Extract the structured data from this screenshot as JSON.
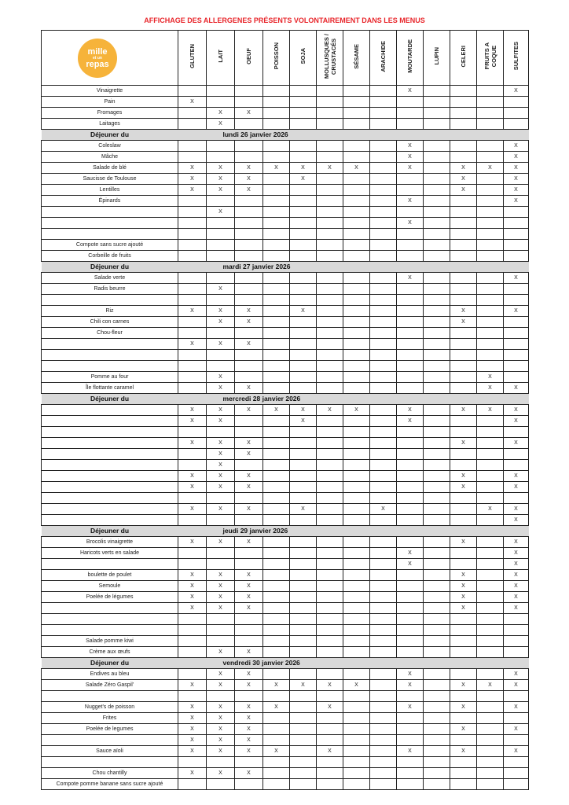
{
  "title": "AFFICHAGE DES ALLERGENES PRÉSENTS VOLONTAIREMENT DANS LES MENUS",
  "logo": {
    "text": "mille et un repas",
    "color": "#f6b33a"
  },
  "columns": [
    "GLUTEN",
    "LAIT",
    "OEUF",
    "POISSON",
    "SOJA",
    "MOLLUSQUES /\nCRUSTACÉS",
    "SÉSAME",
    "ARACHIDE",
    "MOUTARDE",
    "LUPIN",
    "CELERI",
    "FRUITS A\nCOQUE",
    "SULFITES"
  ],
  "accent_color": "#e8262b",
  "sections": [
    {
      "heading": "",
      "date": "",
      "rows": [
        {
          "label": "Vinaigrette",
          "cells": [
            "",
            "",
            "",
            "",
            "",
            "",
            "",
            "",
            "X",
            "",
            "",
            "",
            "X"
          ]
        },
        {
          "label": "Pain",
          "cells": [
            "X",
            "",
            "",
            "",
            "",
            "",
            "",
            "",
            "",
            "",
            "",
            "",
            ""
          ]
        },
        {
          "label": "Fromages",
          "cells": [
            "",
            "X",
            "X",
            "",
            "",
            "",
            "",
            "",
            "",
            "",
            "",
            "",
            ""
          ]
        },
        {
          "label": "Laitages",
          "cells": [
            "",
            "X",
            "",
            "",
            "",
            "",
            "",
            "",
            "",
            "",
            "",
            "",
            ""
          ]
        }
      ]
    },
    {
      "heading": "Déjeuner du",
      "date": "lundi 26 janvier 2026",
      "rows": [
        {
          "label": "Coleslaw",
          "cells": [
            "",
            "",
            "",
            "",
            "",
            "",
            "",
            "",
            "X",
            "",
            "",
            "",
            "X"
          ]
        },
        {
          "label": "Mâche",
          "cells": [
            "",
            "",
            "",
            "",
            "",
            "",
            "",
            "",
            "X",
            "",
            "",
            "",
            "X"
          ]
        },
        {
          "label": "Salade de blé",
          "cells": [
            "X",
            "X",
            "X",
            "X",
            "X",
            "X",
            "X",
            "",
            "X",
            "",
            "X",
            "X",
            "X"
          ]
        },
        {
          "label": "Saucisse de Toulouse",
          "cells": [
            "X",
            "X",
            "X",
            "",
            "X",
            "",
            "",
            "",
            "",
            "",
            "X",
            "",
            "X"
          ]
        },
        {
          "label": "Lentilles",
          "cells": [
            "X",
            "X",
            "X",
            "",
            "",
            "",
            "",
            "",
            "",
            "",
            "X",
            "",
            "X"
          ]
        },
        {
          "label": "Épinards",
          "cells": [
            "",
            "",
            "",
            "",
            "",
            "",
            "",
            "",
            "X",
            "",
            "",
            "",
            "X"
          ]
        },
        {
          "label": "",
          "cells": [
            "",
            "X",
            "",
            "",
            "",
            "",
            "",
            "",
            "",
            "",
            "",
            "",
            ""
          ]
        },
        {
          "label": "",
          "cells": [
            "",
            "",
            "",
            "",
            "",
            "",
            "",
            "",
            "X",
            "",
            "",
            "",
            ""
          ]
        },
        {
          "label": "",
          "cells": [
            "",
            "",
            "",
            "",
            "",
            "",
            "",
            "",
            "",
            "",
            "",
            "",
            ""
          ]
        },
        {
          "label": "Compote sans sucre ajouté",
          "cells": [
            "",
            "",
            "",
            "",
            "",
            "",
            "",
            "",
            "",
            "",
            "",
            "",
            ""
          ]
        },
        {
          "label": "Corbeille de fruits",
          "cells": [
            "",
            "",
            "",
            "",
            "",
            "",
            "",
            "",
            "",
            "",
            "",
            "",
            ""
          ]
        }
      ]
    },
    {
      "heading": "Déjeuner du",
      "date": "mardi 27 janvier 2026",
      "rows": [
        {
          "label": "Salade verte",
          "cells": [
            "",
            "",
            "",
            "",
            "",
            "",
            "",
            "",
            "X",
            "",
            "",
            "",
            "X"
          ]
        },
        {
          "label": "Radis beurre",
          "cells": [
            "",
            "X",
            "",
            "",
            "",
            "",
            "",
            "",
            "",
            "",
            "",
            "",
            ""
          ]
        },
        {
          "label": "",
          "cells": [
            "",
            "",
            "",
            "",
            "",
            "",
            "",
            "",
            "",
            "",
            "",
            "",
            ""
          ]
        },
        {
          "label": "Riz",
          "cells": [
            "X",
            "X",
            "X",
            "",
            "X",
            "",
            "",
            "",
            "",
            "",
            "X",
            "",
            "X"
          ]
        },
        {
          "label": "Chili con carnes",
          "cells": [
            "",
            "X",
            "X",
            "",
            "",
            "",
            "",
            "",
            "",
            "",
            "X",
            "",
            ""
          ]
        },
        {
          "label": "Chou-fleur",
          "cells": [
            "",
            "",
            "",
            "",
            "",
            "",
            "",
            "",
            "",
            "",
            "",
            "",
            ""
          ]
        },
        {
          "label": "",
          "cells": [
            "X",
            "X",
            "X",
            "",
            "",
            "",
            "",
            "",
            "",
            "",
            "",
            "",
            ""
          ]
        },
        {
          "label": "",
          "cells": [
            "",
            "",
            "",
            "",
            "",
            "",
            "",
            "",
            "",
            "",
            "",
            "",
            ""
          ]
        },
        {
          "label": "",
          "cells": [
            "",
            "",
            "",
            "",
            "",
            "",
            "",
            "",
            "",
            "",
            "",
            "",
            ""
          ]
        },
        {
          "label": "Pomme au four",
          "cells": [
            "",
            "X",
            "",
            "",
            "",
            "",
            "",
            "",
            "",
            "",
            "",
            "X",
            ""
          ]
        },
        {
          "label": "Île flottante caramel",
          "cells": [
            "",
            "X",
            "X",
            "",
            "",
            "",
            "",
            "",
            "",
            "",
            "",
            "X",
            "X"
          ]
        }
      ]
    },
    {
      "heading": "Déjeuner du",
      "date": "mercredi 28 janvier 2026",
      "rows": [
        {
          "label": "",
          "cells": [
            "X",
            "X",
            "X",
            "X",
            "X",
            "X",
            "X",
            "",
            "X",
            "",
            "X",
            "X",
            "X"
          ]
        },
        {
          "label": "",
          "cells": [
            "X",
            "X",
            "",
            "",
            "X",
            "",
            "",
            "",
            "X",
            "",
            "",
            "",
            "X"
          ]
        },
        {
          "label": "",
          "cells": [
            "",
            "",
            "",
            "",
            "",
            "",
            "",
            "",
            "",
            "",
            "",
            "",
            ""
          ]
        },
        {
          "label": "",
          "cells": [
            "X",
            "X",
            "X",
            "",
            "",
            "",
            "",
            "",
            "",
            "",
            "X",
            "",
            "X"
          ]
        },
        {
          "label": "",
          "cells": [
            "",
            "X",
            "X",
            "",
            "",
            "",
            "",
            "",
            "",
            "",
            "",
            "",
            ""
          ]
        },
        {
          "label": "",
          "cells": [
            "",
            "X",
            "",
            "",
            "",
            "",
            "",
            "",
            "",
            "",
            "",
            "",
            ""
          ]
        },
        {
          "label": "",
          "cells": [
            "X",
            "X",
            "X",
            "",
            "",
            "",
            "",
            "",
            "",
            "",
            "X",
            "",
            "X"
          ]
        },
        {
          "label": "",
          "cells": [
            "X",
            "X",
            "X",
            "",
            "",
            "",
            "",
            "",
            "",
            "",
            "X",
            "",
            "X"
          ]
        },
        {
          "label": "",
          "cells": [
            "",
            "",
            "",
            "",
            "",
            "",
            "",
            "",
            "",
            "",
            "",
            "",
            ""
          ]
        },
        {
          "label": "",
          "cells": [
            "X",
            "X",
            "X",
            "",
            "X",
            "",
            "",
            "X",
            "",
            "",
            "",
            "X",
            "X"
          ]
        },
        {
          "label": "",
          "cells": [
            "",
            "",
            "",
            "",
            "",
            "",
            "",
            "",
            "",
            "",
            "",
            "",
            "X"
          ]
        }
      ]
    },
    {
      "heading": "Déjeuner du",
      "date": "jeudi 29 janvier 2026",
      "rows": [
        {
          "label": "Brocolis vinaigrette",
          "cells": [
            "X",
            "X",
            "X",
            "",
            "",
            "",
            "",
            "",
            "",
            "",
            "X",
            "",
            "X"
          ]
        },
        {
          "label": "Haricots verts en salade",
          "cells": [
            "",
            "",
            "",
            "",
            "",
            "",
            "",
            "",
            "X",
            "",
            "",
            "",
            "X"
          ]
        },
        {
          "label": "",
          "cells": [
            "",
            "",
            "",
            "",
            "",
            "",
            "",
            "",
            "X",
            "",
            "",
            "",
            "X"
          ]
        },
        {
          "label": "boulette de poulet",
          "cells": [
            "X",
            "X",
            "X",
            "",
            "",
            "",
            "",
            "",
            "",
            "",
            "X",
            "",
            "X"
          ]
        },
        {
          "label": "Semoule",
          "cells": [
            "X",
            "X",
            "X",
            "",
            "",
            "",
            "",
            "",
            "",
            "",
            "X",
            "",
            "X"
          ]
        },
        {
          "label": "Poelée de légumes",
          "cells": [
            "X",
            "X",
            "X",
            "",
            "",
            "",
            "",
            "",
            "",
            "",
            "X",
            "",
            "X"
          ]
        },
        {
          "label": "",
          "cells": [
            "X",
            "X",
            "X",
            "",
            "",
            "",
            "",
            "",
            "",
            "",
            "X",
            "",
            "X"
          ]
        },
        {
          "label": "",
          "cells": [
            "",
            "",
            "",
            "",
            "",
            "",
            "",
            "",
            "",
            "",
            "",
            "",
            ""
          ]
        },
        {
          "label": "",
          "cells": [
            "",
            "",
            "",
            "",
            "",
            "",
            "",
            "",
            "",
            "",
            "",
            "",
            ""
          ]
        },
        {
          "label": "Salade pomme kiwi",
          "cells": [
            "",
            "",
            "",
            "",
            "",
            "",
            "",
            "",
            "",
            "",
            "",
            "",
            ""
          ]
        },
        {
          "label": "Crème aux œufs",
          "cells": [
            "",
            "X",
            "X",
            "",
            "",
            "",
            "",
            "",
            "",
            "",
            "",
            "",
            ""
          ]
        }
      ]
    },
    {
      "heading": "Déjeuner du",
      "date": "vendredi 30 janvier 2026",
      "rows": [
        {
          "label": "Endives au bleu",
          "cells": [
            "",
            "X",
            "X",
            "",
            "",
            "",
            "",
            "",
            "X",
            "",
            "",
            "",
            "X"
          ]
        },
        {
          "label": "Salade Zéro Gaspil'",
          "cells": [
            "X",
            "X",
            "X",
            "X",
            "X",
            "X",
            "X",
            "",
            "X",
            "",
            "X",
            "X",
            "X"
          ]
        },
        {
          "label": "",
          "cells": [
            "",
            "",
            "",
            "",
            "",
            "",
            "",
            "",
            "",
            "",
            "",
            "",
            ""
          ]
        },
        {
          "label": "Nugget's de poisson",
          "cells": [
            "X",
            "X",
            "X",
            "X",
            "",
            "X",
            "",
            "",
            "X",
            "",
            "X",
            "",
            "X"
          ]
        },
        {
          "label": "Frites",
          "cells": [
            "X",
            "X",
            "X",
            "",
            "",
            "",
            "",
            "",
            "",
            "",
            "",
            "",
            ""
          ]
        },
        {
          "label": "Poelée de legumes",
          "cells": [
            "X",
            "X",
            "X",
            "",
            "",
            "",
            "",
            "",
            "",
            "",
            "X",
            "",
            "X"
          ]
        },
        {
          "label": "",
          "cells": [
            "X",
            "X",
            "X",
            "",
            "",
            "",
            "",
            "",
            "",
            "",
            "",
            "",
            ""
          ]
        },
        {
          "label": "Sauce aïoli",
          "cells": [
            "X",
            "X",
            "X",
            "X",
            "",
            "X",
            "",
            "",
            "X",
            "",
            "X",
            "",
            "X"
          ]
        },
        {
          "label": "",
          "cells": [
            "",
            "",
            "",
            "",
            "",
            "",
            "",
            "",
            "",
            "",
            "",
            "",
            ""
          ]
        },
        {
          "label": "Chou chantilly",
          "cells": [
            "X",
            "X",
            "X",
            "",
            "",
            "",
            "",
            "",
            "",
            "",
            "",
            "",
            ""
          ]
        },
        {
          "label": "Compote pomme banane sans sucre ajouté",
          "cells": [
            "",
            "",
            "",
            "",
            "",
            "",
            "",
            "",
            "",
            "",
            "",
            "",
            ""
          ]
        }
      ]
    }
  ]
}
